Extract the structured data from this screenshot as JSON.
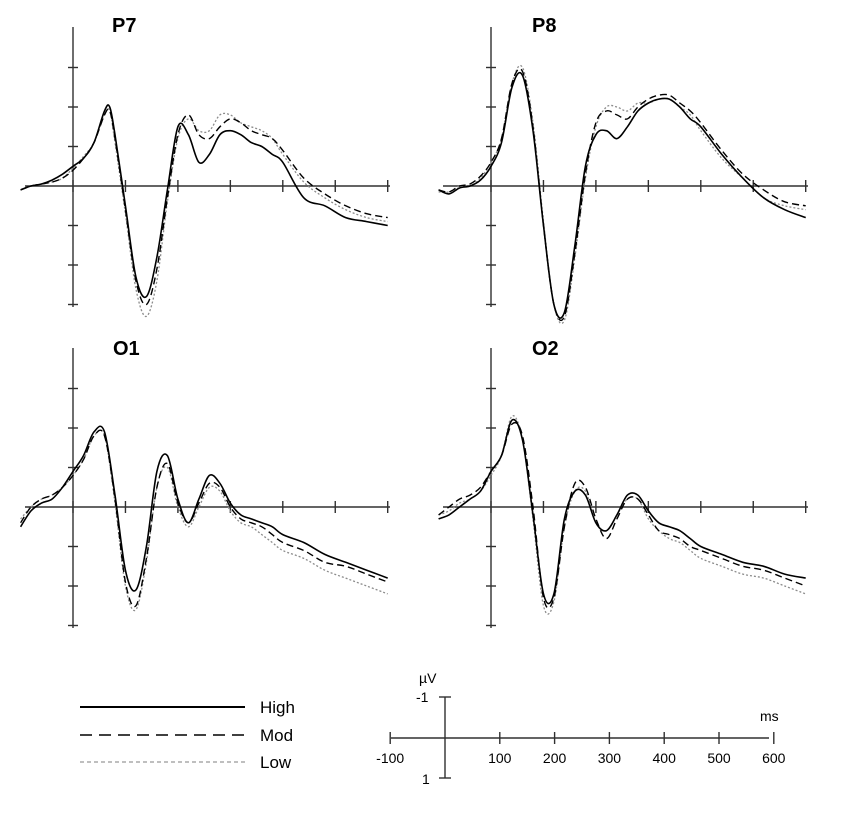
{
  "chart_data": {
    "type": "line",
    "x_unit": "ms",
    "y_unit": "µV",
    "polarity": "negative up",
    "legend": [
      {
        "name": "High",
        "style": "solid",
        "color": "#000000"
      },
      {
        "name": "Mod",
        "style": "dashed",
        "color": "#000000"
      },
      {
        "name": "Low",
        "style": "dotted",
        "color": "#999999"
      }
    ],
    "scale_bar": {
      "y_unit_label": "µV",
      "x_unit_label": "ms",
      "y_ticks": [
        "-1",
        "1"
      ],
      "x_ticks": [
        "-100",
        "100",
        "200",
        "300",
        "400",
        "500",
        "600"
      ]
    },
    "panels": [
      {
        "title": "P7",
        "x": [
          -100,
          -80,
          -60,
          -40,
          -20,
          0,
          20,
          40,
          60,
          70,
          80,
          100,
          120,
          140,
          160,
          180,
          200,
          220,
          240,
          260,
          280,
          300,
          320,
          340,
          360,
          380,
          400,
          440,
          480,
          520,
          560,
          600
        ],
        "series": [
          {
            "name": "High",
            "values": [
              0.1,
              0.0,
              -0.05,
              -0.15,
              -0.3,
              -0.5,
              -0.7,
              -1.1,
              -1.9,
              -2.0,
              -1.3,
              0.5,
              2.3,
              2.8,
              1.8,
              0.1,
              -1.5,
              -1.3,
              -0.6,
              -0.8,
              -1.3,
              -1.4,
              -1.3,
              -1.1,
              -1.0,
              -0.8,
              -0.6,
              0.3,
              0.5,
              0.8,
              0.9,
              1.0
            ]
          },
          {
            "name": "Mod",
            "values": [
              0.1,
              0.0,
              -0.05,
              -0.1,
              -0.2,
              -0.4,
              -0.7,
              -1.1,
              -1.8,
              -1.9,
              -1.2,
              0.6,
              2.4,
              3.0,
              2.1,
              0.3,
              -1.3,
              -1.8,
              -1.3,
              -1.2,
              -1.5,
              -1.7,
              -1.6,
              -1.4,
              -1.3,
              -1.2,
              -0.9,
              -0.2,
              0.2,
              0.5,
              0.7,
              0.8
            ]
          },
          {
            "name": "Low",
            "values": [
              0.1,
              0.0,
              -0.05,
              -0.1,
              -0.2,
              -0.45,
              -0.75,
              -1.1,
              -1.8,
              -1.9,
              -1.1,
              0.7,
              2.6,
              3.3,
              2.4,
              0.4,
              -1.2,
              -1.7,
              -1.4,
              -1.4,
              -1.8,
              -1.8,
              -1.6,
              -1.5,
              -1.4,
              -1.2,
              -0.8,
              -0.1,
              0.3,
              0.6,
              0.8,
              0.9
            ]
          }
        ]
      },
      {
        "title": "P8",
        "x": [
          -100,
          -80,
          -60,
          -40,
          -20,
          0,
          20,
          40,
          60,
          80,
          100,
          120,
          140,
          160,
          180,
          200,
          220,
          240,
          260,
          280,
          300,
          320,
          340,
          360,
          380,
          400,
          440,
          480,
          520,
          560,
          600
        ],
        "series": [
          {
            "name": "High",
            "values": [
              0.1,
              0.2,
              0.05,
              0.0,
              -0.15,
              -0.5,
              -1.1,
              -2.5,
              -2.8,
              -1.4,
              1.0,
              3.0,
              3.2,
              1.5,
              -0.5,
              -1.3,
              -1.4,
              -1.2,
              -1.5,
              -1.9,
              -2.1,
              -2.2,
              -2.2,
              -2.0,
              -1.7,
              -1.5,
              -0.8,
              -0.2,
              0.3,
              0.6,
              0.8
            ]
          },
          {
            "name": "Mod",
            "values": [
              0.1,
              0.15,
              0.0,
              -0.05,
              -0.25,
              -0.6,
              -1.2,
              -2.6,
              -2.9,
              -1.5,
              1.0,
              3.0,
              3.3,
              1.7,
              -0.3,
              -1.6,
              -1.9,
              -1.8,
              -1.7,
              -2.0,
              -2.2,
              -2.3,
              -2.3,
              -2.1,
              -1.9,
              -1.6,
              -0.9,
              -0.3,
              0.1,
              0.4,
              0.5
            ]
          },
          {
            "name": "Low",
            "values": [
              0.15,
              0.15,
              0.0,
              0.0,
              -0.2,
              -0.6,
              -1.2,
              -2.6,
              -3.0,
              -1.6,
              0.9,
              3.0,
              3.4,
              1.8,
              -0.2,
              -1.5,
              -2.0,
              -2.0,
              -1.9,
              -2.1,
              -2.1,
              -2.2,
              -2.2,
              -2.0,
              -1.8,
              -1.4,
              -0.7,
              -0.2,
              0.3,
              0.5,
              0.6
            ]
          }
        ]
      },
      {
        "title": "O1",
        "x": [
          -100,
          -80,
          -60,
          -40,
          -20,
          0,
          20,
          40,
          60,
          80,
          100,
          120,
          140,
          160,
          180,
          200,
          220,
          240,
          260,
          280,
          300,
          320,
          340,
          360,
          380,
          400,
          440,
          480,
          520,
          560,
          600
        ],
        "series": [
          {
            "name": "High",
            "values": [
              0.5,
              0.1,
              -0.1,
              -0.2,
              -0.5,
              -0.9,
              -1.3,
              -1.9,
              -1.9,
              -0.3,
              1.6,
              2.1,
              1.0,
              -0.9,
              -1.3,
              -0.2,
              0.4,
              -0.2,
              -0.8,
              -0.6,
              -0.1,
              0.2,
              0.3,
              0.4,
              0.5,
              0.7,
              0.9,
              1.2,
              1.4,
              1.6,
              1.8
            ]
          },
          {
            "name": "Mod",
            "values": [
              0.4,
              0.0,
              -0.2,
              -0.3,
              -0.5,
              -0.8,
              -1.2,
              -1.8,
              -1.8,
              -0.2,
              1.9,
              2.5,
              1.3,
              -0.5,
              -1.1,
              -0.1,
              0.4,
              -0.1,
              -0.6,
              -0.5,
              0.0,
              0.3,
              0.4,
              0.5,
              0.7,
              0.9,
              1.1,
              1.4,
              1.5,
              1.7,
              1.9
            ]
          },
          {
            "name": "Low",
            "values": [
              0.3,
              0.0,
              -0.2,
              -0.3,
              -0.5,
              -0.8,
              -1.2,
              -1.8,
              -1.8,
              -0.1,
              2.0,
              2.6,
              1.4,
              -0.5,
              -1.0,
              0.0,
              0.5,
              0.0,
              -0.5,
              -0.4,
              0.1,
              0.4,
              0.5,
              0.7,
              0.9,
              1.1,
              1.3,
              1.6,
              1.8,
              2.0,
              2.2
            ]
          }
        ]
      },
      {
        "title": "O2",
        "x": [
          -100,
          -80,
          -60,
          -40,
          -20,
          0,
          20,
          40,
          60,
          80,
          100,
          120,
          140,
          160,
          180,
          200,
          220,
          240,
          260,
          280,
          300,
          320,
          340,
          360,
          380,
          400,
          440,
          480,
          520,
          560,
          600
        ],
        "series": [
          {
            "name": "High",
            "values": [
              0.3,
              0.2,
              0.0,
              -0.2,
              -0.4,
              -0.9,
              -1.3,
              -2.2,
              -1.7,
              0.2,
              2.2,
              2.2,
              0.3,
              -0.4,
              -0.3,
              0.4,
              0.6,
              0.2,
              -0.3,
              -0.3,
              0.1,
              0.4,
              0.5,
              0.6,
              0.8,
              1.0,
              1.2,
              1.4,
              1.5,
              1.7,
              1.8
            ]
          },
          {
            "name": "Mod",
            "values": [
              0.2,
              0.0,
              -0.2,
              -0.3,
              -0.5,
              -0.9,
              -1.3,
              -2.1,
              -1.8,
              0.0,
              2.3,
              2.3,
              0.5,
              -0.6,
              -0.5,
              0.3,
              0.8,
              0.3,
              -0.2,
              -0.2,
              0.2,
              0.6,
              0.7,
              0.8,
              1.0,
              1.1,
              1.3,
              1.5,
              1.6,
              1.8,
              2.0
            ]
          },
          {
            "name": "Low",
            "values": [
              0.2,
              0.1,
              -0.1,
              -0.2,
              -0.4,
              -0.8,
              -1.3,
              -2.3,
              -1.7,
              0.3,
              2.5,
              2.4,
              0.5,
              -0.4,
              -0.4,
              0.4,
              0.6,
              0.2,
              -0.2,
              -0.2,
              0.3,
              0.6,
              0.8,
              0.9,
              1.1,
              1.3,
              1.5,
              1.7,
              1.8,
              2.0,
              2.2
            ]
          }
        ]
      }
    ]
  }
}
